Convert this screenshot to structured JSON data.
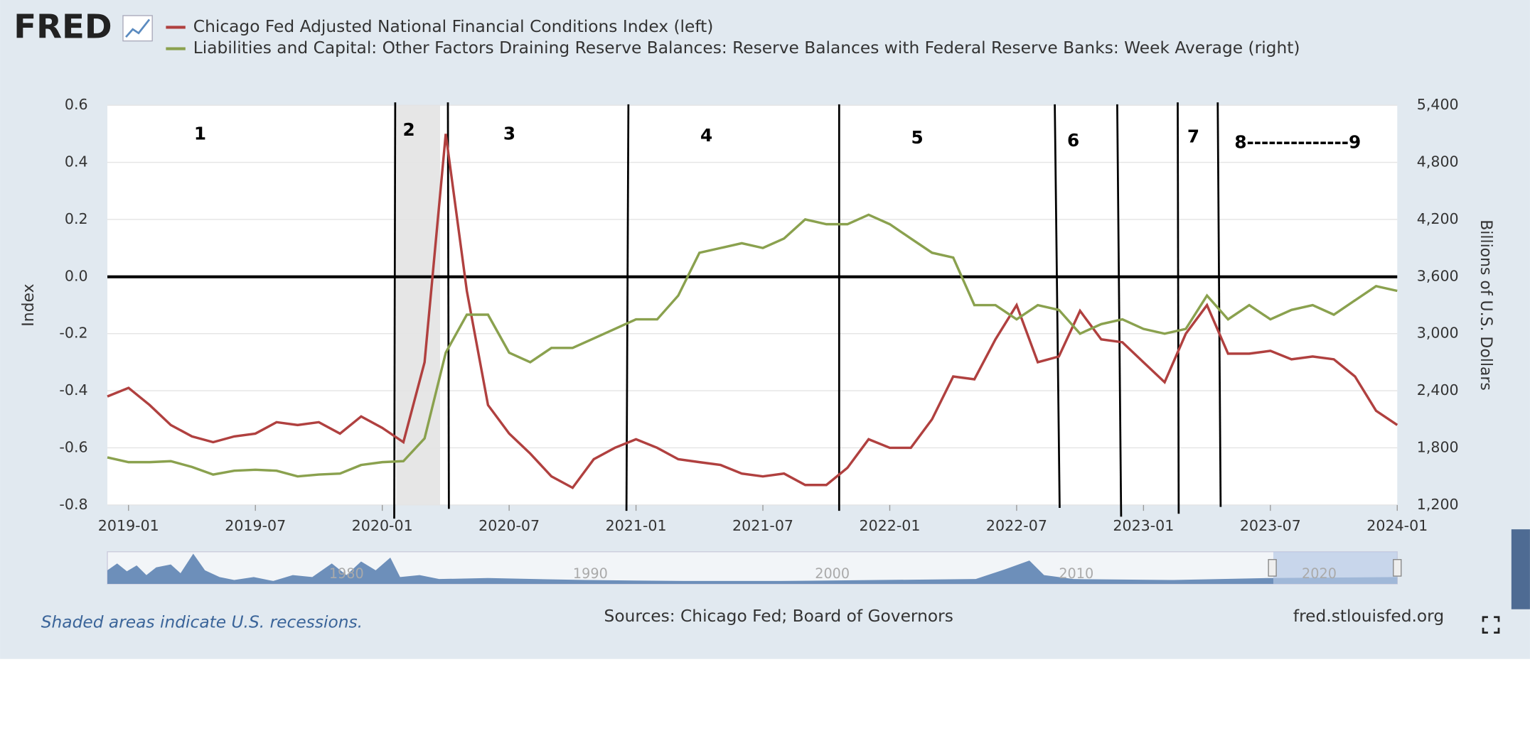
{
  "logo": "FRED",
  "chart_data": {
    "type": "line",
    "x": [
      "2018-12",
      "2019-01",
      "2019-02",
      "2019-03",
      "2019-04",
      "2019-05",
      "2019-06",
      "2019-07",
      "2019-08",
      "2019-09",
      "2019-10",
      "2019-11",
      "2019-12",
      "2020-01",
      "2020-02",
      "2020-03",
      "2020-04",
      "2020-05",
      "2020-06",
      "2020-07",
      "2020-08",
      "2020-09",
      "2020-10",
      "2020-11",
      "2020-12",
      "2021-01",
      "2021-02",
      "2021-03",
      "2021-04",
      "2021-05",
      "2021-06",
      "2021-07",
      "2021-08",
      "2021-09",
      "2021-10",
      "2021-11",
      "2021-12",
      "2022-01",
      "2022-02",
      "2022-03",
      "2022-04",
      "2022-05",
      "2022-06",
      "2022-07",
      "2022-08",
      "2022-09",
      "2022-10",
      "2022-11",
      "2022-12",
      "2023-01",
      "2023-02",
      "2023-03",
      "2023-04",
      "2023-05",
      "2023-06",
      "2023-07",
      "2023-08",
      "2023-09",
      "2023-10",
      "2023-11",
      "2023-12",
      "2024-01"
    ],
    "series": [
      {
        "name": "Chicago Fed Adjusted National Financial Conditions Index (left)",
        "color": "#b0403f",
        "axis": "y",
        "values": [
          -0.42,
          -0.39,
          -0.45,
          -0.52,
          -0.56,
          -0.58,
          -0.56,
          -0.55,
          -0.51,
          -0.52,
          -0.51,
          -0.55,
          -0.49,
          -0.53,
          -0.58,
          -0.3,
          0.5,
          -0.05,
          -0.45,
          -0.55,
          -0.62,
          -0.7,
          -0.74,
          -0.64,
          -0.6,
          -0.57,
          -0.6,
          -0.64,
          -0.65,
          -0.66,
          -0.69,
          -0.7,
          -0.69,
          -0.73,
          -0.73,
          -0.67,
          -0.57,
          -0.6,
          -0.6,
          -0.5,
          -0.35,
          -0.36,
          -0.22,
          -0.1,
          -0.3,
          -0.28,
          -0.12,
          -0.22,
          -0.23,
          -0.3,
          -0.37,
          -0.2,
          -0.1,
          -0.27,
          -0.27,
          -0.26,
          -0.29,
          -0.28,
          -0.29,
          -0.35,
          -0.47,
          -0.52
        ]
      },
      {
        "name": "Liabilities and Capital: Other Factors Draining Reserve Balances: Reserve Balances with Federal Reserve Banks: Week Average (right)",
        "color": "#8aa14e",
        "axis": "y2",
        "values": [
          1700,
          1650,
          1650,
          1660,
          1600,
          1520,
          1560,
          1570,
          1560,
          1500,
          1520,
          1530,
          1620,
          1650,
          1660,
          1900,
          2800,
          3200,
          3200,
          2800,
          2700,
          2850,
          2850,
          2950,
          3050,
          3150,
          3150,
          3400,
          3850,
          3900,
          3950,
          3900,
          4000,
          4200,
          4150,
          4150,
          4250,
          4150,
          4000,
          3850,
          3800,
          3300,
          3300,
          3150,
          3300,
          3250,
          3000,
          3100,
          3150,
          3050,
          3000,
          3050,
          3400,
          3150,
          3300,
          3150,
          3250,
          3300,
          3200,
          3350,
          3500,
          3450
        ]
      }
    ],
    "xlim": [
      "2018-12",
      "2024-01"
    ],
    "xticks": [
      "2019-01",
      "2019-07",
      "2020-01",
      "2020-07",
      "2021-01",
      "2021-07",
      "2022-01",
      "2022-07",
      "2023-01",
      "2023-07",
      "2024-01"
    ],
    "ylim": [
      -0.8,
      0.6
    ],
    "yticks": [
      -0.8,
      -0.6,
      -0.4,
      -0.2,
      {
        "value": 0,
        "label": "0.0"
      },
      0.2,
      0.4,
      0.6
    ],
    "y2lim": [
      1200,
      5400
    ],
    "y2ticks": [
      {
        "value": 1200,
        "label": "1,200"
      },
      {
        "value": 1800,
        "label": "1,800"
      },
      {
        "value": 2400,
        "label": "2,400"
      },
      {
        "value": 3000,
        "label": "3,000"
      },
      {
        "value": 3600,
        "label": "3,600"
      },
      {
        "value": 4200,
        "label": "4,200"
      },
      {
        "value": 4800,
        "label": "4,800"
      },
      {
        "value": 5400,
        "label": "5,400"
      }
    ],
    "ylabel": "Index",
    "y2label": "Billions of U.S. Dollars",
    "grid": true,
    "annotations": [
      "1",
      "2",
      "3",
      "4",
      "5",
      "6",
      "7",
      "8--------------9"
    ],
    "navigator_labels": [
      "1980",
      "1990",
      "2000",
      "2010",
      "2020"
    ],
    "note": "Shaded areas indicate U.S. recessions.",
    "source": "Sources: Chicago Fed; Board of Governors",
    "site": "fred.stlouisfed.org"
  }
}
